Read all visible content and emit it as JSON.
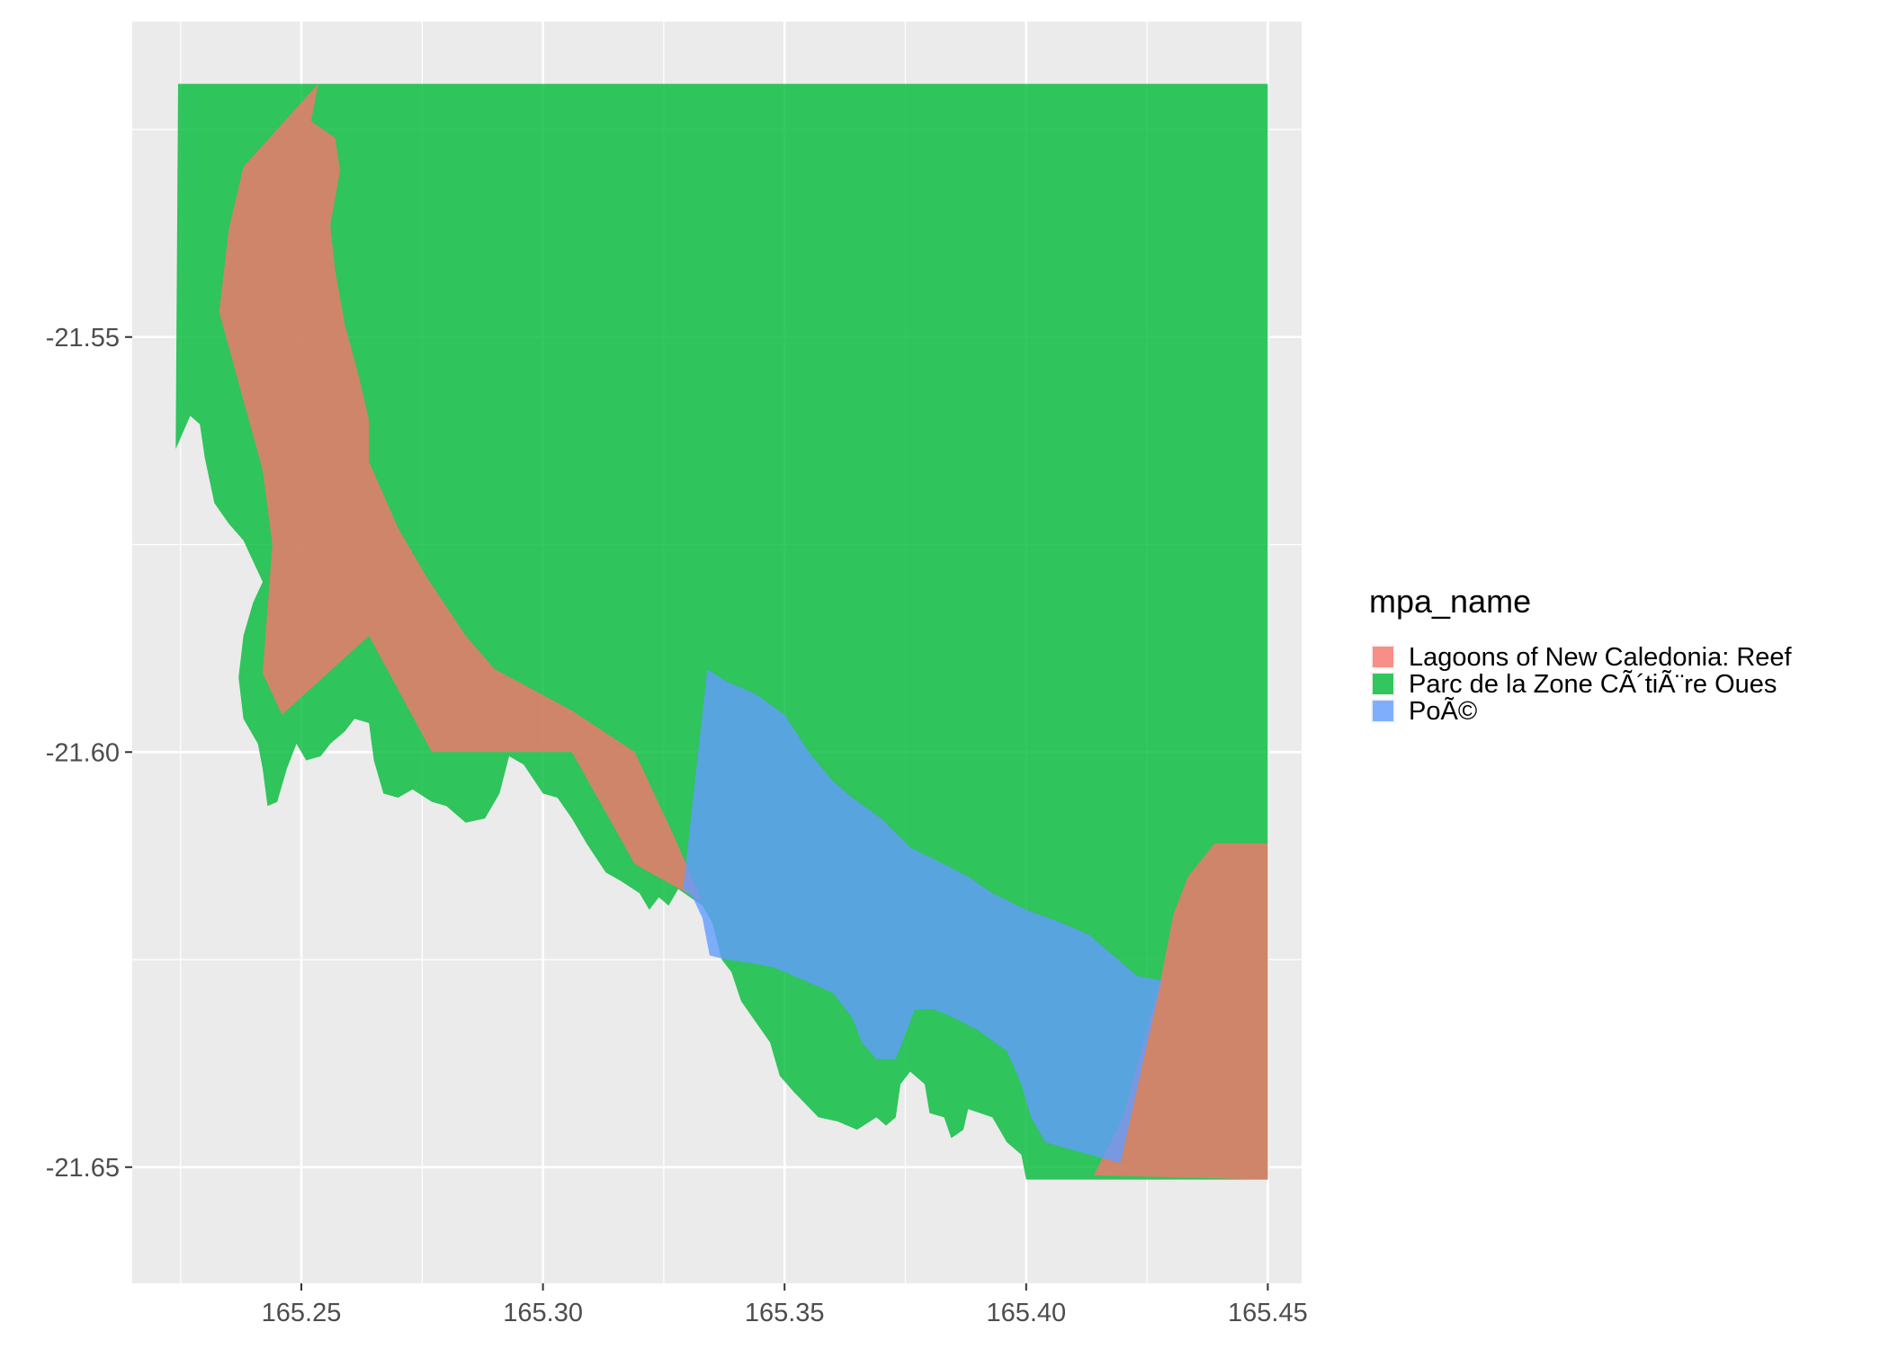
{
  "chart_data": {
    "type": "map",
    "xlim": [
      165.215,
      165.457
    ],
    "ylim": [
      -21.664,
      -21.512
    ],
    "x_ticks": [
      165.25,
      165.3,
      165.35,
      165.4,
      165.45
    ],
    "x_tick_labels": [
      "165.25",
      "165.30",
      "165.35",
      "165.40",
      "165.45"
    ],
    "x_minor": [
      165.225,
      165.275,
      165.325,
      165.375,
      165.425
    ],
    "y_ticks": [
      -21.55,
      -21.6,
      -21.65
    ],
    "y_tick_labels": [
      "-21.55",
      "-21.60",
      "-21.65"
    ],
    "y_minor": [
      -21.525,
      -21.575,
      -21.625
    ],
    "grid": true,
    "legend": {
      "title": "mpa_name",
      "position": "right",
      "entries": [
        {
          "label": "Lagoons of New Caledonia: Reef",
          "color": "#F8766D"
        },
        {
          "label": "Parc de la Zone CÃ´tiÃ¨re Oues",
          "color": "#00BA38"
        },
        {
          "label": "PoÃ©",
          "color": "#619CFF"
        }
      ]
    },
    "fill_alpha": 0.8,
    "layers": [
      {
        "name": "parc-zone-cotiere-ouest",
        "fill": "#00BA38",
        "coords": [
          [
            165.2245,
            -21.5195
          ],
          [
            165.45,
            -21.5195
          ],
          [
            165.45,
            -21.6515
          ],
          [
            165.4,
            -21.6515
          ],
          [
            165.399,
            -21.6485
          ],
          [
            165.396,
            -21.647
          ],
          [
            165.393,
            -21.644
          ],
          [
            165.388,
            -21.643
          ],
          [
            165.387,
            -21.6455
          ],
          [
            165.3845,
            -21.6465
          ],
          [
            165.383,
            -21.644
          ],
          [
            165.38,
            -21.6435
          ],
          [
            165.379,
            -21.64
          ],
          [
            165.376,
            -21.6385
          ],
          [
            165.374,
            -21.64
          ],
          [
            165.373,
            -21.644
          ],
          [
            165.371,
            -21.645
          ],
          [
            165.369,
            -21.644
          ],
          [
            165.365,
            -21.6455
          ],
          [
            165.361,
            -21.6445
          ],
          [
            165.357,
            -21.644
          ],
          [
            165.352,
            -21.641
          ],
          [
            165.349,
            -21.639
          ],
          [
            165.347,
            -21.635
          ],
          [
            165.344,
            -21.6325
          ],
          [
            165.341,
            -21.63
          ],
          [
            165.339,
            -21.6265
          ],
          [
            165.337,
            -21.625
          ],
          [
            165.335,
            -21.6205
          ],
          [
            165.333,
            -21.6185
          ],
          [
            165.328,
            -21.6165
          ],
          [
            165.326,
            -21.6185
          ],
          [
            165.324,
            -21.6175
          ],
          [
            165.322,
            -21.619
          ],
          [
            165.32,
            -21.617
          ],
          [
            165.316,
            -21.6155
          ],
          [
            165.313,
            -21.6145
          ],
          [
            165.309,
            -21.611
          ],
          [
            165.306,
            -21.608
          ],
          [
            165.303,
            -21.6055
          ],
          [
            165.3,
            -21.605
          ],
          [
            165.296,
            -21.6015
          ],
          [
            165.293,
            -21.6005
          ],
          [
            165.291,
            -21.605
          ],
          [
            165.288,
            -21.608
          ],
          [
            165.284,
            -21.6085
          ],
          [
            165.28,
            -21.6065
          ],
          [
            165.277,
            -21.606
          ],
          [
            165.273,
            -21.6045
          ],
          [
            165.27,
            -21.6055
          ],
          [
            165.267,
            -21.605
          ],
          [
            165.265,
            -21.601
          ],
          [
            165.264,
            -21.5965
          ],
          [
            165.261,
            -21.596
          ],
          [
            165.259,
            -21.5975
          ],
          [
            165.256,
            -21.599
          ],
          [
            165.254,
            -21.6005
          ],
          [
            165.251,
            -21.601
          ],
          [
            165.249,
            -21.599
          ],
          [
            165.247,
            -21.602
          ],
          [
            165.245,
            -21.606
          ],
          [
            165.243,
            -21.6065
          ],
          [
            165.242,
            -21.602
          ],
          [
            165.241,
            -21.599
          ],
          [
            165.238,
            -21.596
          ],
          [
            165.237,
            -21.591
          ],
          [
            165.238,
            -21.586
          ],
          [
            165.24,
            -21.582
          ],
          [
            165.242,
            -21.5795
          ],
          [
            165.24,
            -21.577
          ],
          [
            165.238,
            -21.5745
          ],
          [
            165.235,
            -21.5725
          ],
          [
            165.232,
            -21.57
          ],
          [
            165.23,
            -21.5645
          ],
          [
            165.229,
            -21.5605
          ],
          [
            165.227,
            -21.5595
          ],
          [
            165.224,
            -21.5635
          ]
        ]
      },
      {
        "name": "lagoons-of-new-caledonia-reef",
        "fill": "#F8766D",
        "coords": [
          [
            165.2535,
            -21.5195
          ],
          [
            165.252,
            -21.524
          ],
          [
            165.257,
            -21.526
          ],
          [
            165.258,
            -21.53
          ],
          [
            165.256,
            -21.5365
          ],
          [
            165.257,
            -21.542
          ],
          [
            165.259,
            -21.5485
          ],
          [
            165.262,
            -21.555
          ],
          [
            165.264,
            -21.56
          ],
          [
            165.264,
            -21.565
          ],
          [
            165.27,
            -21.573
          ],
          [
            165.276,
            -21.579
          ],
          [
            165.284,
            -21.586
          ],
          [
            165.29,
            -21.59
          ],
          [
            165.306,
            -21.595
          ],
          [
            165.319,
            -21.6
          ],
          [
            165.327,
            -21.61
          ],
          [
            165.333,
            -21.618
          ],
          [
            165.34,
            -21.625
          ],
          [
            165.344,
            -21.632
          ],
          [
            165.347,
            -21.636
          ],
          [
            165.375,
            -21.636
          ],
          [
            165.385,
            -21.639
          ],
          [
            165.395,
            -21.644
          ],
          [
            165.406,
            -21.647
          ],
          [
            165.414,
            -21.651
          ],
          [
            165.45,
            -21.6515
          ],
          [
            165.45,
            -21.611
          ],
          [
            165.439,
            -21.611
          ],
          [
            165.4335,
            -21.615
          ],
          [
            165.4305,
            -21.6195
          ],
          [
            165.428,
            -21.627
          ],
          [
            165.42,
            -21.644
          ],
          [
            165.414,
            -21.651
          ],
          [
            165.406,
            -21.647
          ],
          [
            165.395,
            -21.644
          ],
          [
            165.385,
            -21.639
          ],
          [
            165.375,
            -21.636
          ],
          [
            165.347,
            -21.636
          ],
          [
            165.344,
            -21.632
          ],
          [
            165.34,
            -21.625
          ],
          [
            165.333,
            -21.618
          ],
          [
            165.319,
            -21.6135
          ],
          [
            165.306,
            -21.6
          ],
          [
            165.297,
            -21.6
          ],
          [
            165.277,
            -21.6
          ],
          [
            165.264,
            -21.586
          ],
          [
            165.246,
            -21.5955
          ],
          [
            165.242,
            -21.5905
          ],
          [
            165.244,
            -21.575
          ],
          [
            165.242,
            -21.566
          ],
          [
            165.237,
            -21.5555
          ],
          [
            165.233,
            -21.547
          ],
          [
            165.235,
            -21.537
          ],
          [
            165.238,
            -21.5295
          ]
        ]
      },
      {
        "name": "poe",
        "fill": "#619CFF",
        "coords": [
          [
            165.334,
            -21.59
          ],
          [
            165.338,
            -21.5915
          ],
          [
            165.344,
            -21.593
          ],
          [
            165.35,
            -21.5955
          ],
          [
            165.355,
            -21.6
          ],
          [
            165.36,
            -21.6035
          ],
          [
            165.364,
            -21.6055
          ],
          [
            165.37,
            -21.608
          ],
          [
            165.376,
            -21.6115
          ],
          [
            165.383,
            -21.6135
          ],
          [
            165.388,
            -21.615
          ],
          [
            165.393,
            -21.617
          ],
          [
            165.4,
            -21.619
          ],
          [
            165.407,
            -21.6205
          ],
          [
            165.413,
            -21.622
          ],
          [
            165.417,
            -21.624
          ],
          [
            165.423,
            -21.627
          ],
          [
            165.428,
            -21.6275
          ],
          [
            165.4195,
            -21.6495
          ],
          [
            165.41,
            -21.648
          ],
          [
            165.404,
            -21.647
          ],
          [
            165.401,
            -21.644
          ],
          [
            165.399,
            -21.64
          ],
          [
            165.396,
            -21.636
          ],
          [
            165.39,
            -21.6335
          ],
          [
            165.385,
            -21.632
          ],
          [
            165.381,
            -21.631
          ],
          [
            165.377,
            -21.631
          ],
          [
            165.375,
            -21.634
          ],
          [
            165.373,
            -21.637
          ],
          [
            165.369,
            -21.637
          ],
          [
            165.366,
            -21.635
          ],
          [
            165.364,
            -21.632
          ],
          [
            165.36,
            -21.629
          ],
          [
            165.356,
            -21.628
          ],
          [
            165.352,
            -21.627
          ],
          [
            165.348,
            -21.626
          ],
          [
            165.344,
            -21.6255
          ],
          [
            165.338,
            -21.625
          ],
          [
            165.3345,
            -21.6245
          ],
          [
            165.333,
            -21.62
          ],
          [
            165.331,
            -21.6175
          ],
          [
            165.329,
            -21.6165
          ]
        ]
      }
    ]
  }
}
